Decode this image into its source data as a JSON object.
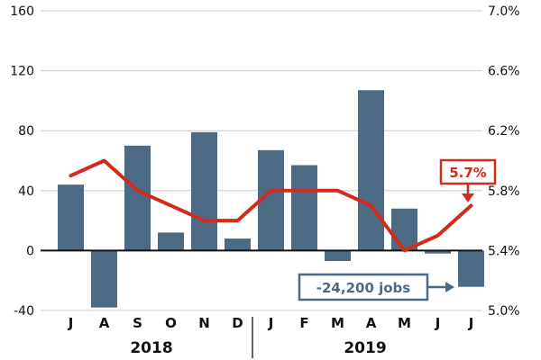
{
  "chart_data": {
    "type": "bar",
    "categories": [
      "J",
      "A",
      "S",
      "O",
      "N",
      "D",
      "J",
      "F",
      "M",
      "A",
      "M",
      "J",
      "J"
    ],
    "year_groups": [
      {
        "label": "2018",
        "months": [
          "J",
          "A",
          "S",
          "O",
          "N",
          "D"
        ]
      },
      {
        "label": "2019",
        "months": [
          "J",
          "F",
          "M",
          "A",
          "M",
          "J",
          "J"
        ]
      }
    ],
    "series": [
      {
        "type": "bar",
        "axis": "left",
        "values": [
          44,
          -38,
          70,
          12,
          79,
          8,
          67,
          57,
          -7,
          107,
          28,
          -2,
          -24.2
        ]
      },
      {
        "type": "line",
        "axis": "right",
        "values": [
          5.9,
          6.0,
          5.8,
          5.7,
          5.6,
          5.6,
          5.8,
          5.8,
          5.8,
          5.7,
          5.4,
          5.5,
          5.7
        ]
      }
    ],
    "y_left": {
      "ticks": [
        "160",
        "120",
        "80",
        "40",
        "0",
        "-40"
      ],
      "ylim": [
        -40,
        160
      ]
    },
    "y_right": {
      "ticks": [
        "7.0%",
        "6.6%",
        "6.2%",
        "5.8%",
        "5.4%",
        "5.0%"
      ],
      "ylim": [
        5.0,
        7.0
      ]
    },
    "grid": true,
    "annotations": {
      "rate_label": "5.7%",
      "jobs_label": "-24,200 jobs"
    },
    "colors": {
      "bar": "#4d6a85",
      "line": "#d42a1e",
      "grid": "#c8c8c8",
      "arrow": "#4d6a85"
    }
  }
}
